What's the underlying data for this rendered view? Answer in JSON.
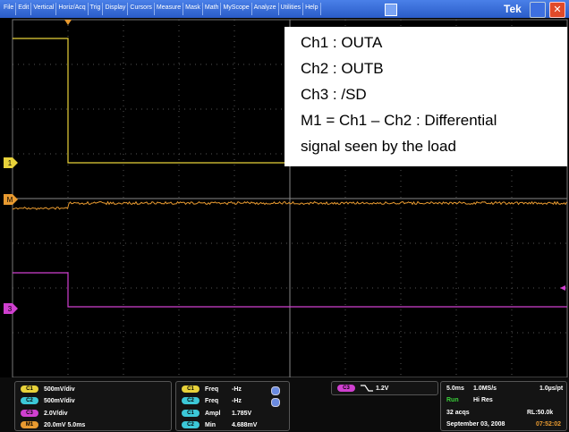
{
  "menu": [
    "File",
    "Edit",
    "Vertical",
    "Horiz/Acq",
    "Trig",
    "Display",
    "Cursors",
    "Measure",
    "Mask",
    "Math",
    "MyScope",
    "Analyze",
    "Utilities",
    "Help"
  ],
  "brand": "Tek",
  "annotation": [
    "Ch1 : OUTA",
    "Ch2 : OUTB",
    "Ch3 : /SD",
    "M1 = Ch1 – Ch2 : Differential",
    "signal seen by the load"
  ],
  "markers": [
    "1",
    "M",
    "3"
  ],
  "status": {
    "channels": [
      {
        "badge": "C1",
        "text": "500mV/div",
        "color": "#e8d23a"
      },
      {
        "badge": "C2",
        "text": "500mV/div",
        "color": "#3cc8d8"
      },
      {
        "badge": "C3",
        "text": "2.0V/div",
        "color": "#d040d0"
      },
      {
        "badge": "M1",
        "text": "20.0mV 5.0ms",
        "color": "#e89a30"
      }
    ],
    "measurements": [
      {
        "badge": "C1",
        "name": "Freq",
        "value": "-Hz",
        "color": "#e8d23a"
      },
      {
        "badge": "C2",
        "name": "Freq",
        "value": "-Hz",
        "color": "#3cc8d8"
      },
      {
        "badge": "C1",
        "name": "Ampl",
        "value": "1.785V",
        "color": "#3cc8d8"
      },
      {
        "badge": "C2",
        "name": "Min",
        "value": "4.688mV",
        "color": "#3cc8d8"
      }
    ],
    "trigger": {
      "badge": "C3",
      "level": "1.2V",
      "color": "#d040d0"
    },
    "acquisition": [
      [
        "5.0ms",
        "1.0MS/s",
        "1.0µs/pt"
      ],
      [
        "Run",
        "Hi Res"
      ],
      [
        "32 acqs",
        "RL:50.0k"
      ],
      [
        "September 03, 2008",
        "07:52:02"
      ]
    ]
  }
}
